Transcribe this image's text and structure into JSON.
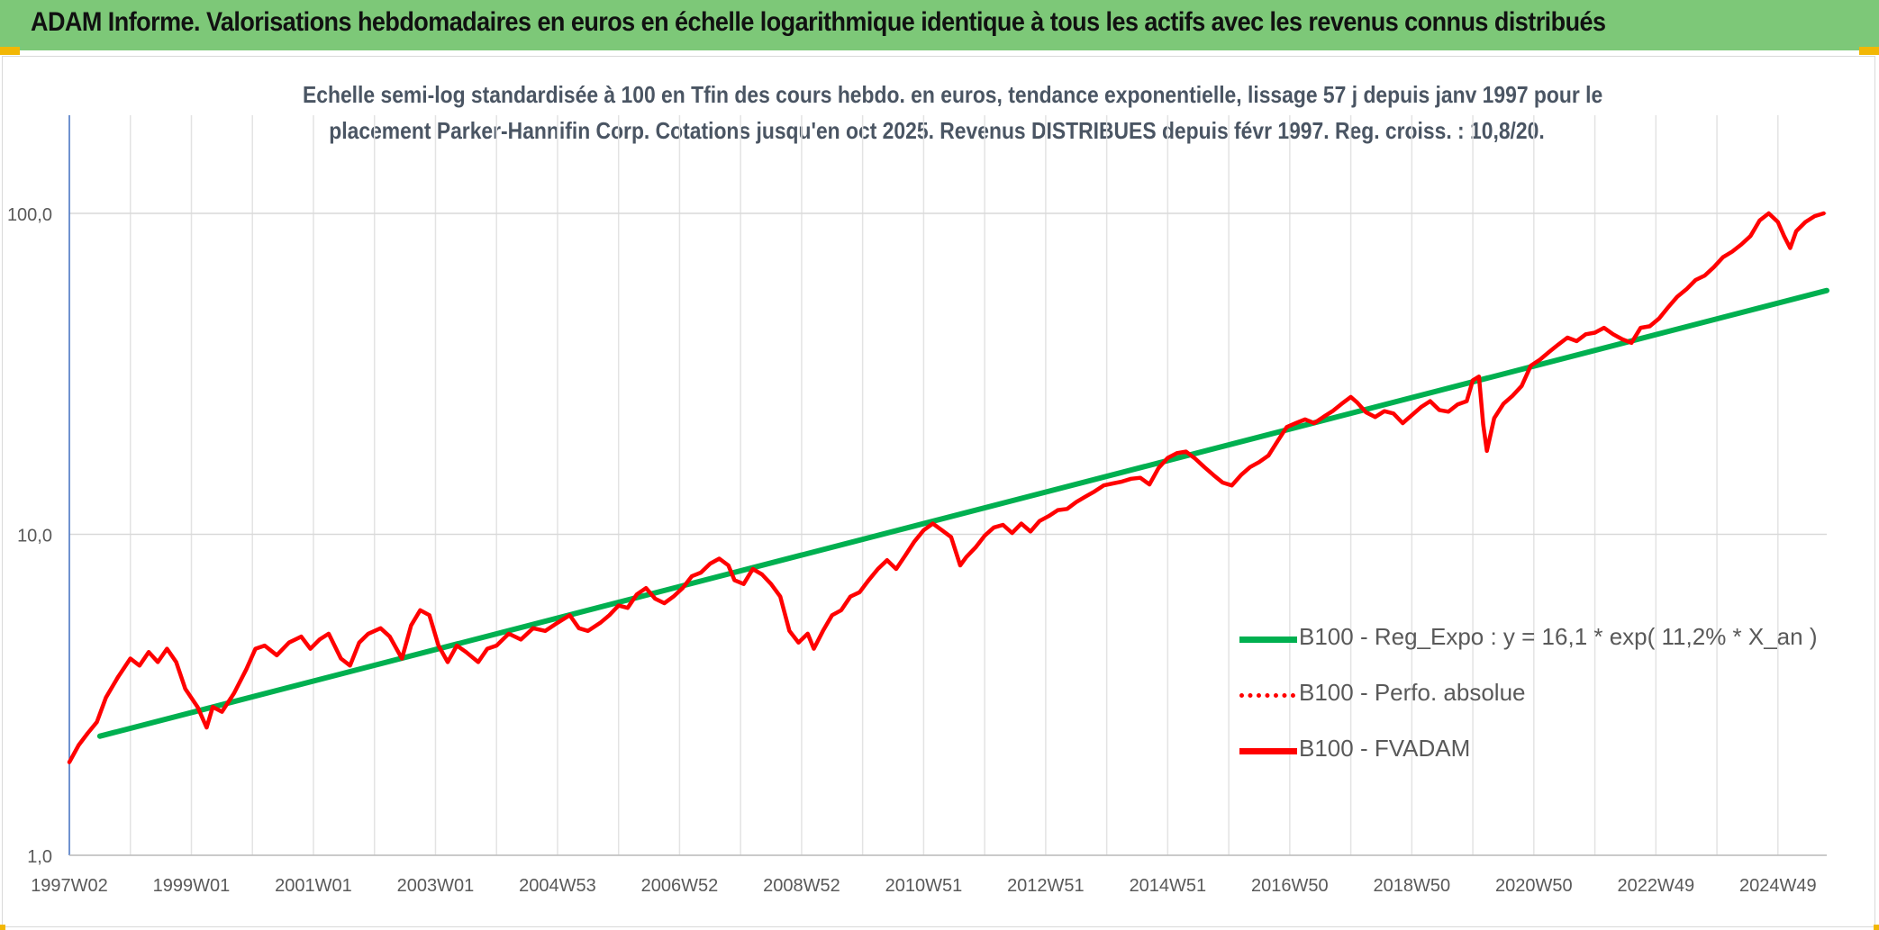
{
  "header": {
    "title": "ADAM Informe. Valorisations hebdomadaires en euros en échelle logarithmique identique à tous les actifs avec les revenus connus distribués"
  },
  "chart_data": {
    "type": "line",
    "title_line1": "Echelle semi-log standardisée à 100 en Tfin des cours hebdo. en euros, tendance exponentielle, lissage 57 j depuis janv 1997 pour le",
    "title_line2": "placement Parker-Hannifin Corp. Cotations jusqu'en oct 2025. Revenus DISTRIBUES depuis févr 1997. Reg. croiss. : 10,8/20.",
    "y_scale": "log",
    "ylim": [
      1,
      180
    ],
    "y_ticks": [
      {
        "value": 1,
        "label": "1,0"
      },
      {
        "value": 10,
        "label": "10,0"
      },
      {
        "value": 100,
        "label": "100,0"
      }
    ],
    "x_range": [
      1997.0,
      2025.8
    ],
    "x_ticks": [
      {
        "t": 1997.0,
        "label": "1997W02"
      },
      {
        "t": 1999.0,
        "label": "1999W01"
      },
      {
        "t": 2001.0,
        "label": "2001W01"
      },
      {
        "t": 2003.0,
        "label": "2003W01"
      },
      {
        "t": 2005.0,
        "label": "2004W53"
      },
      {
        "t": 2007.0,
        "label": "2006W52"
      },
      {
        "t": 2009.0,
        "label": "2008W52"
      },
      {
        "t": 2011.0,
        "label": "2010W51"
      },
      {
        "t": 2013.0,
        "label": "2012W51"
      },
      {
        "t": 2015.0,
        "label": "2014W51"
      },
      {
        "t": 2017.0,
        "label": "2016W50"
      },
      {
        "t": 2019.0,
        "label": "2018W50"
      },
      {
        "t": 2021.0,
        "label": "2020W50"
      },
      {
        "t": 2023.0,
        "label": "2022W49"
      },
      {
        "t": 2025.0,
        "label": "2024W49"
      }
    ],
    "grid": "vertical-and-horizontal",
    "legend_position": "bottom-right",
    "series": [
      {
        "name": "B100 - Reg_Expo : y = 16,1 * exp( 11,2% *  X_an )",
        "color": "#00b050",
        "style": "solid",
        "points": [
          [
            1997.5,
            2.35
          ],
          [
            2025.8,
            57.5
          ]
        ]
      },
      {
        "name": "B100 - Perfo. absolue",
        "color": "#ff0000",
        "style": "dotted",
        "points": []
      },
      {
        "name": "B100 - FVADAM",
        "color": "#ff0000",
        "style": "solid",
        "points": [
          [
            1997.0,
            1.95
          ],
          [
            1997.15,
            2.2
          ],
          [
            1997.3,
            2.4
          ],
          [
            1997.45,
            2.6
          ],
          [
            1997.6,
            3.1
          ],
          [
            1997.8,
            3.6
          ],
          [
            1998.0,
            4.1
          ],
          [
            1998.15,
            3.9
          ],
          [
            1998.3,
            4.3
          ],
          [
            1998.45,
            4.0
          ],
          [
            1998.6,
            4.4
          ],
          [
            1998.75,
            4.0
          ],
          [
            1998.9,
            3.3
          ],
          [
            1999.1,
            2.9
          ],
          [
            1999.25,
            2.5
          ],
          [
            1999.35,
            2.9
          ],
          [
            1999.5,
            2.8
          ],
          [
            1999.7,
            3.2
          ],
          [
            1999.9,
            3.8
          ],
          [
            2000.05,
            4.4
          ],
          [
            2000.2,
            4.5
          ],
          [
            2000.4,
            4.2
          ],
          [
            2000.6,
            4.6
          ],
          [
            2000.8,
            4.8
          ],
          [
            2000.95,
            4.4
          ],
          [
            2001.1,
            4.7
          ],
          [
            2001.25,
            4.9
          ],
          [
            2001.45,
            4.1
          ],
          [
            2001.6,
            3.9
          ],
          [
            2001.75,
            4.6
          ],
          [
            2001.9,
            4.9
          ],
          [
            2002.1,
            5.1
          ],
          [
            2002.25,
            4.8
          ],
          [
            2002.45,
            4.1
          ],
          [
            2002.6,
            5.2
          ],
          [
            2002.75,
            5.8
          ],
          [
            2002.9,
            5.6
          ],
          [
            2003.05,
            4.5
          ],
          [
            2003.2,
            4.0
          ],
          [
            2003.35,
            4.5
          ],
          [
            2003.5,
            4.3
          ],
          [
            2003.7,
            4.0
          ],
          [
            2003.85,
            4.4
          ],
          [
            2004.0,
            4.5
          ],
          [
            2004.2,
            4.9
          ],
          [
            2004.4,
            4.7
          ],
          [
            2004.6,
            5.1
          ],
          [
            2004.8,
            5.0
          ],
          [
            2005.0,
            5.3
          ],
          [
            2005.2,
            5.6
          ],
          [
            2005.35,
            5.1
          ],
          [
            2005.5,
            5.0
          ],
          [
            2005.7,
            5.3
          ],
          [
            2005.85,
            5.6
          ],
          [
            2006.0,
            6.0
          ],
          [
            2006.15,
            5.9
          ],
          [
            2006.3,
            6.5
          ],
          [
            2006.45,
            6.8
          ],
          [
            2006.6,
            6.3
          ],
          [
            2006.75,
            6.1
          ],
          [
            2006.9,
            6.4
          ],
          [
            2007.05,
            6.8
          ],
          [
            2007.2,
            7.4
          ],
          [
            2007.35,
            7.6
          ],
          [
            2007.5,
            8.1
          ],
          [
            2007.65,
            8.4
          ],
          [
            2007.8,
            8.0
          ],
          [
            2007.9,
            7.2
          ],
          [
            2008.05,
            7.0
          ],
          [
            2008.2,
            7.8
          ],
          [
            2008.35,
            7.5
          ],
          [
            2008.5,
            7.0
          ],
          [
            2008.65,
            6.4
          ],
          [
            2008.8,
            5.0
          ],
          [
            2008.95,
            4.6
          ],
          [
            2009.1,
            4.9
          ],
          [
            2009.2,
            4.4
          ],
          [
            2009.35,
            5.0
          ],
          [
            2009.5,
            5.6
          ],
          [
            2009.65,
            5.8
          ],
          [
            2009.8,
            6.4
          ],
          [
            2009.95,
            6.6
          ],
          [
            2010.1,
            7.2
          ],
          [
            2010.25,
            7.8
          ],
          [
            2010.4,
            8.3
          ],
          [
            2010.55,
            7.8
          ],
          [
            2010.7,
            8.6
          ],
          [
            2010.85,
            9.5
          ],
          [
            2011.0,
            10.3
          ],
          [
            2011.15,
            10.8
          ],
          [
            2011.3,
            10.3
          ],
          [
            2011.45,
            9.8
          ],
          [
            2011.6,
            8.0
          ],
          [
            2011.7,
            8.5
          ],
          [
            2011.85,
            9.1
          ],
          [
            2012.0,
            9.9
          ],
          [
            2012.15,
            10.5
          ],
          [
            2012.3,
            10.7
          ],
          [
            2012.45,
            10.1
          ],
          [
            2012.6,
            10.8
          ],
          [
            2012.75,
            10.2
          ],
          [
            2012.9,
            11.0
          ],
          [
            2013.05,
            11.4
          ],
          [
            2013.2,
            11.9
          ],
          [
            2013.35,
            12.0
          ],
          [
            2013.5,
            12.6
          ],
          [
            2013.65,
            13.1
          ],
          [
            2013.8,
            13.6
          ],
          [
            2013.95,
            14.2
          ],
          [
            2014.1,
            14.4
          ],
          [
            2014.25,
            14.6
          ],
          [
            2014.4,
            14.9
          ],
          [
            2014.55,
            15.0
          ],
          [
            2014.7,
            14.3
          ],
          [
            2014.85,
            16.1
          ],
          [
            2015.0,
            17.3
          ],
          [
            2015.15,
            17.9
          ],
          [
            2015.3,
            18.1
          ],
          [
            2015.45,
            17.2
          ],
          [
            2015.6,
            16.2
          ],
          [
            2015.75,
            15.3
          ],
          [
            2015.9,
            14.5
          ],
          [
            2016.05,
            14.2
          ],
          [
            2016.2,
            15.3
          ],
          [
            2016.35,
            16.2
          ],
          [
            2016.5,
            16.8
          ],
          [
            2016.65,
            17.6
          ],
          [
            2016.8,
            19.5
          ],
          [
            2016.95,
            21.6
          ],
          [
            2017.1,
            22.2
          ],
          [
            2017.25,
            22.8
          ],
          [
            2017.4,
            22.2
          ],
          [
            2017.55,
            23.2
          ],
          [
            2017.7,
            24.2
          ],
          [
            2017.85,
            25.5
          ],
          [
            2018.0,
            26.8
          ],
          [
            2018.1,
            25.8
          ],
          [
            2018.25,
            24.0
          ],
          [
            2018.4,
            23.2
          ],
          [
            2018.55,
            24.2
          ],
          [
            2018.7,
            23.8
          ],
          [
            2018.85,
            22.2
          ],
          [
            2019.0,
            23.5
          ],
          [
            2019.15,
            24.9
          ],
          [
            2019.3,
            26.0
          ],
          [
            2019.45,
            24.4
          ],
          [
            2019.6,
            24.1
          ],
          [
            2019.75,
            25.4
          ],
          [
            2019.9,
            26.0
          ],
          [
            2020.0,
            30.2
          ],
          [
            2020.1,
            31.0
          ],
          [
            2020.17,
            22.0
          ],
          [
            2020.23,
            18.2
          ],
          [
            2020.35,
            23.0
          ],
          [
            2020.5,
            25.5
          ],
          [
            2020.65,
            27.0
          ],
          [
            2020.8,
            29.0
          ],
          [
            2020.95,
            33.5
          ],
          [
            2021.1,
            35.0
          ],
          [
            2021.25,
            37.0
          ],
          [
            2021.4,
            39.0
          ],
          [
            2021.55,
            41.0
          ],
          [
            2021.7,
            40.0
          ],
          [
            2021.85,
            42.0
          ],
          [
            2022.0,
            42.5
          ],
          [
            2022.15,
            44.0
          ],
          [
            2022.3,
            42.0
          ],
          [
            2022.45,
            40.5
          ],
          [
            2022.6,
            39.5
          ],
          [
            2022.75,
            44.0
          ],
          [
            2022.9,
            44.5
          ],
          [
            2023.05,
            47.0
          ],
          [
            2023.2,
            51.0
          ],
          [
            2023.35,
            55.0
          ],
          [
            2023.5,
            58.0
          ],
          [
            2023.65,
            62.0
          ],
          [
            2023.8,
            64.0
          ],
          [
            2023.95,
            68.0
          ],
          [
            2024.1,
            73.0
          ],
          [
            2024.25,
            76.0
          ],
          [
            2024.4,
            80.0
          ],
          [
            2024.55,
            85.0
          ],
          [
            2024.7,
            95.0
          ],
          [
            2024.85,
            100.0
          ],
          [
            2025.0,
            94.0
          ],
          [
            2025.1,
            85.0
          ],
          [
            2025.2,
            78.0
          ],
          [
            2025.3,
            88.0
          ],
          [
            2025.45,
            94.0
          ],
          [
            2025.6,
            98.0
          ],
          [
            2025.75,
            100.0
          ]
        ]
      }
    ]
  }
}
